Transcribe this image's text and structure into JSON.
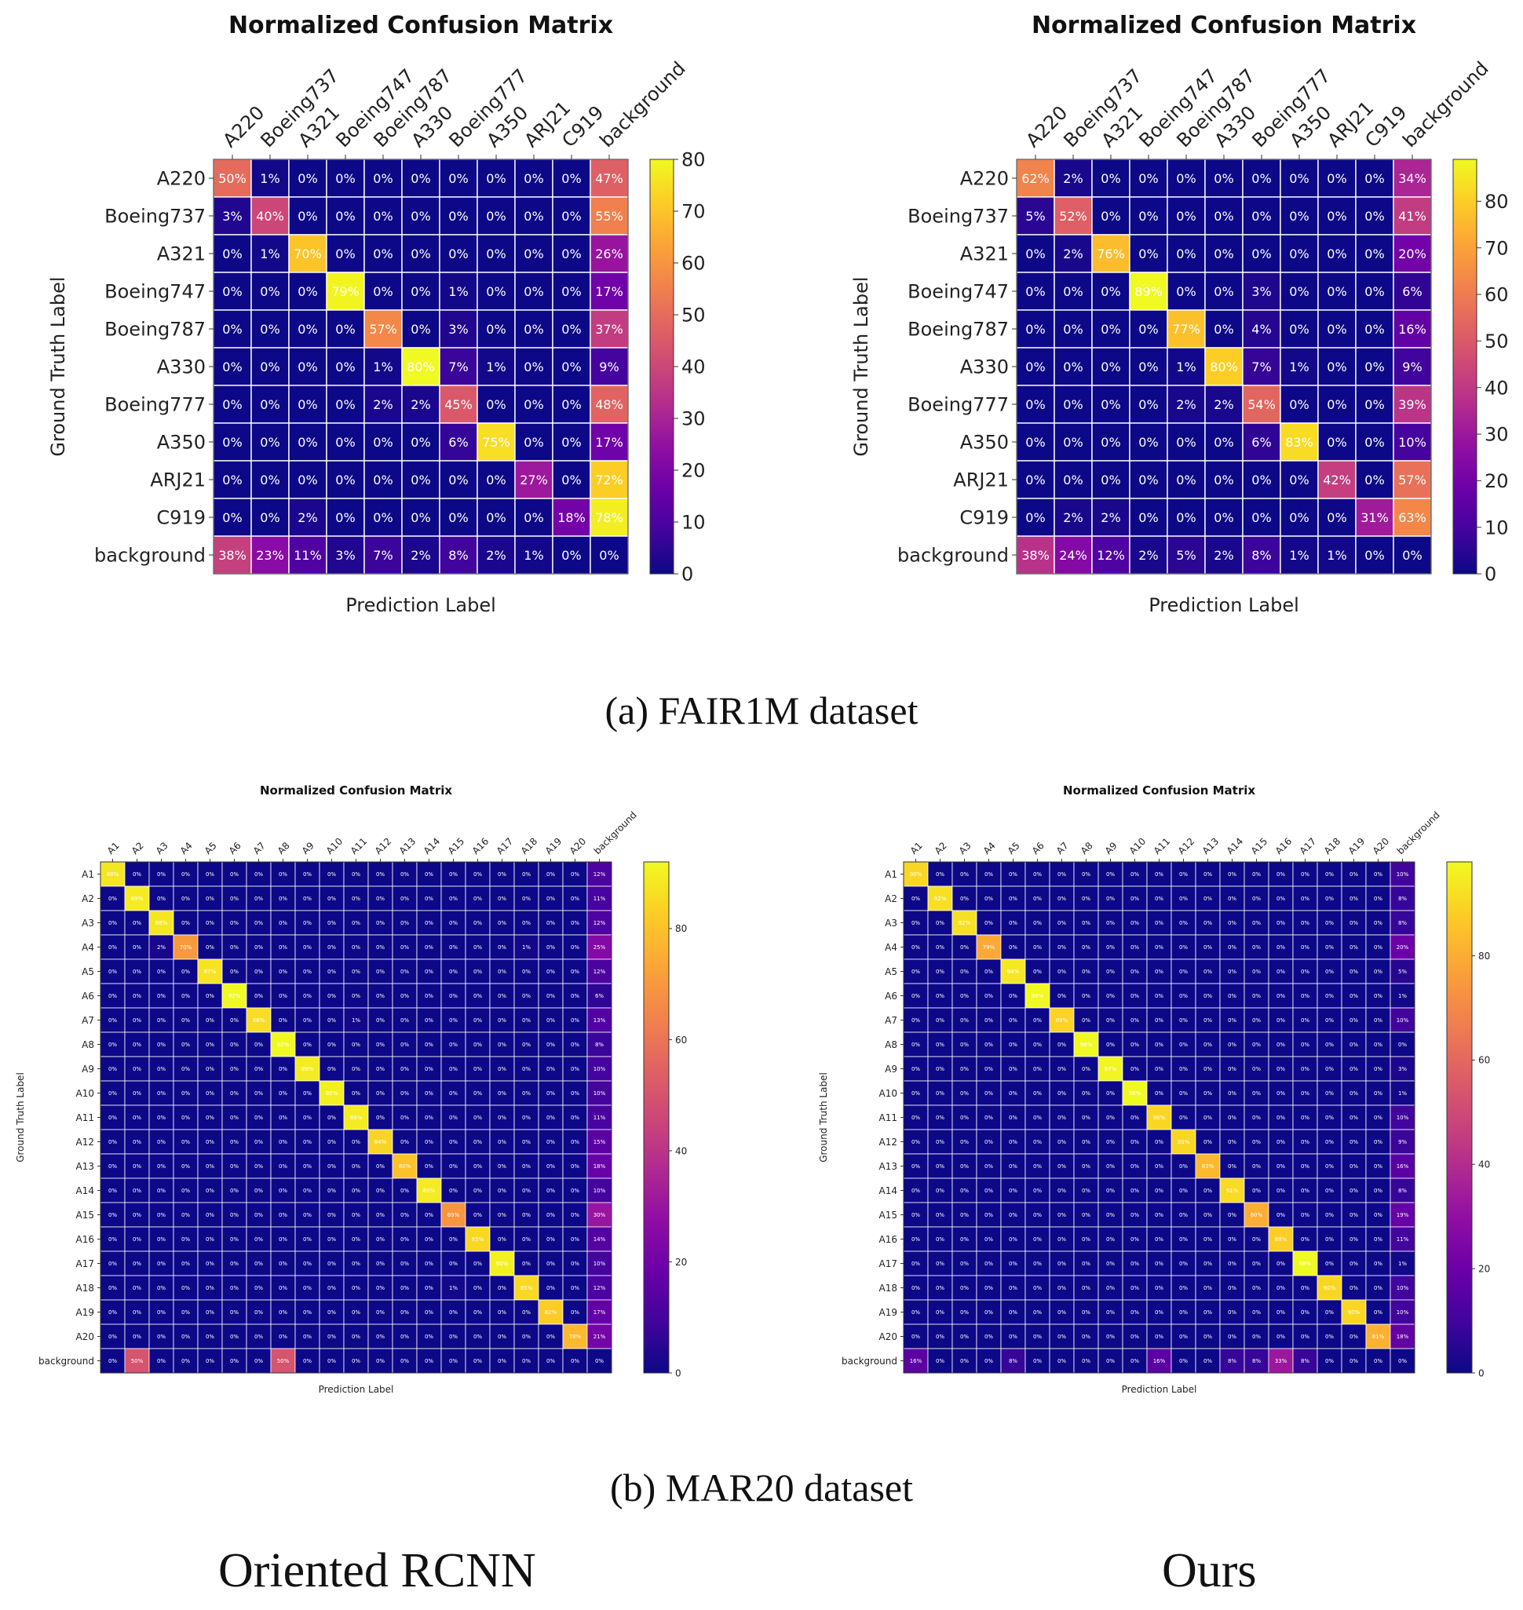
{
  "captions": {
    "a": "(a)  FAIR1M dataset",
    "b": "(b)  MAR20 dataset"
  },
  "methods": {
    "left": "Oriented RCNN",
    "right": "Ours"
  },
  "colors": {
    "colormap": "plasma",
    "grid": "#ffffff",
    "light_text": "#ffffff"
  },
  "chart_data": [
    {
      "type": "heatmap",
      "title": "Normalized Confusion Matrix",
      "xlabel": "Prediction Label",
      "ylabel": "Ground Truth Label",
      "colorbar_max": 80,
      "colorbar_ticks": [
        0,
        10,
        20,
        30,
        40,
        50,
        60,
        70,
        80
      ],
      "labels": [
        "A220",
        "Boeing737",
        "A321",
        "Boeing747",
        "Boeing787",
        "A330",
        "Boeing777",
        "A350",
        "ARJ21",
        "C919",
        "background"
      ],
      "values": [
        [
          50,
          1,
          0,
          0,
          0,
          0,
          0,
          0,
          0,
          0,
          47
        ],
        [
          3,
          40,
          0,
          0,
          0,
          0,
          0,
          0,
          0,
          0,
          55
        ],
        [
          0,
          1,
          70,
          0,
          0,
          0,
          0,
          0,
          0,
          0,
          26
        ],
        [
          0,
          0,
          0,
          79,
          0,
          0,
          1,
          0,
          0,
          0,
          17
        ],
        [
          0,
          0,
          0,
          0,
          57,
          0,
          3,
          0,
          0,
          0,
          37
        ],
        [
          0,
          0,
          0,
          0,
          1,
          80,
          7,
          1,
          0,
          0,
          9
        ],
        [
          0,
          0,
          0,
          0,
          2,
          2,
          45,
          0,
          0,
          0,
          48
        ],
        [
          0,
          0,
          0,
          0,
          0,
          0,
          6,
          75,
          0,
          0,
          17
        ],
        [
          0,
          0,
          0,
          0,
          0,
          0,
          0,
          0,
          27,
          0,
          72
        ],
        [
          0,
          0,
          2,
          0,
          0,
          0,
          0,
          0,
          0,
          18,
          78
        ],
        [
          38,
          23,
          11,
          3,
          7,
          2,
          8,
          2,
          1,
          0,
          0
        ]
      ]
    },
    {
      "type": "heatmap",
      "title": "Normalized Confusion Matrix",
      "xlabel": "Prediction Label",
      "ylabel": "Ground Truth Label",
      "colorbar_max": 89,
      "colorbar_ticks": [
        0,
        10,
        20,
        30,
        40,
        50,
        60,
        70,
        80
      ],
      "labels": [
        "A220",
        "Boeing737",
        "A321",
        "Boeing747",
        "Boeing787",
        "A330",
        "Boeing777",
        "A350",
        "ARJ21",
        "C919",
        "background"
      ],
      "values": [
        [
          62,
          2,
          0,
          0,
          0,
          0,
          0,
          0,
          0,
          0,
          34
        ],
        [
          5,
          52,
          0,
          0,
          0,
          0,
          0,
          0,
          0,
          0,
          41
        ],
        [
          0,
          2,
          76,
          0,
          0,
          0,
          0,
          0,
          0,
          0,
          20
        ],
        [
          0,
          0,
          0,
          89,
          0,
          0,
          3,
          0,
          0,
          0,
          6
        ],
        [
          0,
          0,
          0,
          0,
          77,
          0,
          4,
          0,
          0,
          0,
          16
        ],
        [
          0,
          0,
          0,
          0,
          1,
          80,
          7,
          1,
          0,
          0,
          9
        ],
        [
          0,
          0,
          0,
          0,
          2,
          2,
          54,
          0,
          0,
          0,
          39
        ],
        [
          0,
          0,
          0,
          0,
          0,
          0,
          6,
          83,
          0,
          0,
          10
        ],
        [
          0,
          0,
          0,
          0,
          0,
          0,
          0,
          0,
          42,
          0,
          57
        ],
        [
          0,
          2,
          2,
          0,
          0,
          0,
          0,
          0,
          0,
          31,
          63
        ],
        [
          38,
          24,
          12,
          2,
          5,
          2,
          8,
          1,
          1,
          0,
          0
        ]
      ]
    },
    {
      "type": "heatmap",
      "title": "Normalized Confusion Matrix",
      "xlabel": "Prediction Label",
      "ylabel": "Ground Truth Label",
      "colorbar_max": 92,
      "colorbar_ticks": [
        0,
        20,
        40,
        60,
        80
      ],
      "labels": [
        "A1",
        "A2",
        "A3",
        "A4",
        "A5",
        "A6",
        "A7",
        "A8",
        "A9",
        "A10",
        "A11",
        "A12",
        "A13",
        "A14",
        "A15",
        "A16",
        "A17",
        "A18",
        "A19",
        "A20",
        "background"
      ],
      "diagonal": [
        88,
        89,
        88,
        70,
        87,
        92,
        86,
        92,
        89,
        90,
        89,
        84,
        80,
        89,
        69,
        85,
        90,
        85,
        82,
        78
      ],
      "background_column": [
        12,
        11,
        12,
        25,
        12,
        6,
        13,
        8,
        10,
        10,
        11,
        15,
        18,
        10,
        30,
        14,
        10,
        12,
        17,
        21,
        0
      ],
      "extras": [
        {
          "row": 3,
          "col": 2,
          "value": 2
        },
        {
          "row": 3,
          "col": 17,
          "value": 1
        },
        {
          "row": 6,
          "col": 10,
          "value": 1
        },
        {
          "row": 17,
          "col": 14,
          "value": 1
        },
        {
          "row": 20,
          "col": 1,
          "value": 50
        },
        {
          "row": 20,
          "col": 7,
          "value": 50
        }
      ]
    },
    {
      "type": "heatmap",
      "title": "Normalized Confusion Matrix",
      "xlabel": "Prediction Label",
      "ylabel": "Ground Truth Label",
      "colorbar_max": 98,
      "colorbar_ticks": [
        0,
        20,
        40,
        60,
        80
      ],
      "labels": [
        "A1",
        "A2",
        "A3",
        "A4",
        "A5",
        "A6",
        "A7",
        "A8",
        "A9",
        "A10",
        "A11",
        "A12",
        "A13",
        "A14",
        "A15",
        "A16",
        "A17",
        "A18",
        "A19",
        "A20",
        "background"
      ],
      "diagonal": [
        90,
        92,
        92,
        79,
        94,
        98,
        89,
        98,
        97,
        98,
        90,
        90,
        83,
        91,
        80,
        88,
        98,
        90,
        90,
        81
      ],
      "background_column": [
        10,
        8,
        8,
        20,
        5,
        1,
        10,
        0,
        3,
        1,
        10,
        9,
        16,
        8,
        19,
        11,
        1,
        10,
        10,
        18,
        0
      ],
      "extras": [
        {
          "row": 20,
          "col": 0,
          "value": 16
        },
        {
          "row": 20,
          "col": 4,
          "value": 8
        },
        {
          "row": 20,
          "col": 10,
          "value": 16
        },
        {
          "row": 20,
          "col": 13,
          "value": 8
        },
        {
          "row": 20,
          "col": 14,
          "value": 8
        },
        {
          "row": 20,
          "col": 15,
          "value": 33
        },
        {
          "row": 20,
          "col": 16,
          "value": 8
        }
      ]
    }
  ]
}
